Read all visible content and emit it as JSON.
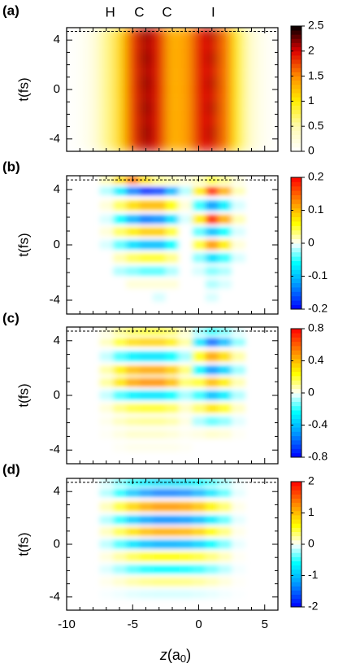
{
  "chart_data": [
    {
      "type": "heatmap",
      "panel_label": "(a)",
      "ylabel": "t(fs)",
      "atoms": [
        "H",
        "C",
        "C",
        "I"
      ],
      "xlim": [
        -10,
        6
      ],
      "xticks": [
        -10,
        -5,
        0,
        5
      ],
      "xminorticks": [
        -9,
        -8,
        -7,
        -6,
        -4,
        -3,
        -2,
        -1,
        1,
        2,
        3,
        4
      ],
      "show_xticklabels": false,
      "ylim": [
        -5,
        5
      ],
      "yticks": [
        -4,
        0,
        4
      ],
      "yminorticks": [
        -3,
        -2,
        -1,
        1,
        2,
        3
      ],
      "hline": 4.7,
      "clim": [
        0,
        2.5
      ],
      "cticks": [
        0,
        0.5,
        1,
        1.5,
        2,
        2.5
      ],
      "colorscale": [
        {
          "value": 0,
          "color": "#ffffff"
        },
        {
          "value": 0.5,
          "color": "#fffbb0"
        },
        {
          "value": 1,
          "color": "#ffee00"
        },
        {
          "value": 1.5,
          "color": "#ff8c00"
        },
        {
          "value": 2,
          "color": "#dd0000"
        },
        {
          "value": 2.5,
          "color": "#000000"
        }
      ],
      "x": [
        -9,
        -8,
        -7,
        -6,
        -5,
        -4,
        -3,
        -2,
        -1,
        0,
        1,
        2,
        3,
        4,
        5
      ],
      "y": [
        4.5,
        3.5,
        2.5,
        1.5,
        0.5,
        -0.5,
        -1.5,
        -2.5,
        -3.5,
        -4.5
      ],
      "values": [
        [
          0.05,
          0.2,
          0.6,
          1.1,
          1.8,
          2.2,
          1.9,
          1.3,
          1.4,
          1.9,
          2.1,
          1.6,
          0.9,
          0.3,
          0.08
        ],
        [
          0.05,
          0.2,
          0.6,
          1.1,
          1.8,
          2.1,
          1.9,
          1.3,
          1.4,
          1.9,
          2.0,
          1.6,
          0.9,
          0.3,
          0.08
        ],
        [
          0.05,
          0.2,
          0.6,
          1.1,
          1.8,
          2.2,
          1.9,
          1.3,
          1.4,
          1.9,
          2.1,
          1.6,
          0.9,
          0.3,
          0.08
        ],
        [
          0.05,
          0.2,
          0.6,
          1.1,
          1.8,
          2.1,
          1.9,
          1.3,
          1.4,
          1.9,
          2.0,
          1.6,
          0.9,
          0.3,
          0.08
        ],
        [
          0.05,
          0.2,
          0.6,
          1.1,
          1.8,
          2.2,
          1.9,
          1.3,
          1.4,
          1.9,
          2.1,
          1.6,
          0.9,
          0.3,
          0.08
        ],
        [
          0.05,
          0.2,
          0.6,
          1.1,
          1.8,
          2.1,
          1.9,
          1.3,
          1.4,
          1.9,
          2.0,
          1.6,
          0.9,
          0.3,
          0.08
        ],
        [
          0.05,
          0.2,
          0.6,
          1.1,
          1.8,
          2.2,
          1.9,
          1.3,
          1.4,
          1.9,
          2.1,
          1.6,
          0.9,
          0.3,
          0.08
        ],
        [
          0.05,
          0.2,
          0.6,
          1.1,
          1.8,
          2.1,
          1.9,
          1.3,
          1.4,
          1.9,
          2.0,
          1.6,
          0.9,
          0.3,
          0.08
        ],
        [
          0.05,
          0.2,
          0.6,
          1.1,
          1.8,
          2.2,
          1.9,
          1.3,
          1.4,
          1.9,
          2.1,
          1.6,
          0.9,
          0.3,
          0.08
        ],
        [
          0.05,
          0.2,
          0.6,
          1.1,
          1.8,
          2.1,
          1.9,
          1.3,
          1.4,
          1.9,
          2.0,
          1.6,
          0.9,
          0.3,
          0.08
        ]
      ]
    },
    {
      "type": "heatmap",
      "panel_label": "(b)",
      "ylabel": "t(fs)",
      "xlim": [
        -10,
        6
      ],
      "xticks": [
        -10,
        -5,
        0,
        5
      ],
      "xminorticks": [
        -9,
        -8,
        -7,
        -6,
        -4,
        -3,
        -2,
        -1,
        1,
        2,
        3,
        4
      ],
      "show_xticklabels": false,
      "ylim": [
        -5,
        5
      ],
      "yticks": [
        -4,
        0,
        4
      ],
      "yminorticks": [
        -3,
        -2,
        -1,
        1,
        2,
        3
      ],
      "hline": 4.7,
      "clim": [
        -0.2,
        0.2
      ],
      "cticks": [
        -0.2,
        -0.1,
        0,
        0.1,
        0.2
      ],
      "colorscale": [
        {
          "value": -0.2,
          "color": "#0000ff"
        },
        {
          "value": -0.12,
          "color": "#00a0ff"
        },
        {
          "value": -0.06,
          "color": "#00ffff"
        },
        {
          "value": 0,
          "color": "#ffffff"
        },
        {
          "value": 0.06,
          "color": "#ffff00"
        },
        {
          "value": 0.12,
          "color": "#ff9900"
        },
        {
          "value": 0.2,
          "color": "#ff0000"
        }
      ],
      "x": [
        -7,
        -6,
        -5,
        -4,
        -3,
        -2,
        -1,
        0,
        1,
        2,
        3
      ],
      "y": [
        4.7,
        3.9,
        2.85,
        1.85,
        0.95,
        0,
        -0.95,
        -1.9,
        -2.85,
        -3.8
      ],
      "values": [
        [
          0.02,
          0.08,
          0.14,
          0.08,
          0.03,
          0.02,
          0.01,
          0.02,
          0.05,
          0.03,
          0.01
        ],
        [
          -0.02,
          -0.07,
          -0.14,
          -0.18,
          -0.17,
          -0.11,
          -0.02,
          0.07,
          0.18,
          0.11,
          0.02
        ],
        [
          0.01,
          0.04,
          0.08,
          0.1,
          0.1,
          0.06,
          0.01,
          -0.05,
          -0.12,
          -0.07,
          -0.01
        ],
        [
          -0.01,
          -0.06,
          -0.11,
          -0.14,
          -0.13,
          -0.08,
          -0.01,
          0.07,
          0.18,
          0.11,
          0.02
        ],
        [
          0.01,
          0.04,
          0.07,
          0.09,
          0.09,
          0.05,
          0,
          -0.04,
          -0.1,
          -0.06,
          -0.01
        ],
        [
          -0.01,
          -0.04,
          -0.08,
          -0.1,
          -0.1,
          -0.06,
          0,
          0.05,
          0.12,
          0.07,
          0.01
        ],
        [
          0,
          0.02,
          0.04,
          0.05,
          0.05,
          0.03,
          0,
          -0.03,
          -0.08,
          -0.05,
          -0.01
        ],
        [
          0,
          -0.02,
          -0.03,
          -0.04,
          -0.04,
          -0.02,
          0,
          -0.01,
          -0.03,
          -0.02,
          0
        ],
        [
          0,
          0,
          0.01,
          0.01,
          0.01,
          0.01,
          0,
          0,
          -0.02,
          -0.01,
          0
        ],
        [
          0,
          0,
          0,
          0,
          -0.01,
          0,
          0,
          0,
          -0.01,
          0,
          0
        ]
      ]
    },
    {
      "type": "heatmap",
      "panel_label": "(c)",
      "ylabel": "t(fs)",
      "xlim": [
        -10,
        6
      ],
      "xticks": [
        -10,
        -5,
        0,
        5
      ],
      "xminorticks": [
        -9,
        -8,
        -7,
        -6,
        -4,
        -3,
        -2,
        -1,
        1,
        2,
        3,
        4
      ],
      "show_xticklabels": false,
      "ylim": [
        -5,
        5
      ],
      "yticks": [
        -4,
        0,
        4
      ],
      "yminorticks": [
        -3,
        -2,
        -1,
        1,
        2,
        3
      ],
      "hline": 4.7,
      "clim": [
        -0.8,
        0.8
      ],
      "cticks": [
        -0.8,
        -0.4,
        0,
        0.4,
        0.8
      ],
      "colorscale": [
        {
          "value": -0.8,
          "color": "#0000ff"
        },
        {
          "value": -0.48,
          "color": "#00a0ff"
        },
        {
          "value": -0.24,
          "color": "#00ffff"
        },
        {
          "value": 0,
          "color": "#ffffff"
        },
        {
          "value": 0.24,
          "color": "#ffff00"
        },
        {
          "value": 0.48,
          "color": "#ff9900"
        },
        {
          "value": 0.8,
          "color": "#ff0000"
        }
      ],
      "x": [
        -7,
        -6,
        -5,
        -4,
        -3,
        -2,
        -1,
        0,
        1,
        2,
        3
      ],
      "y": [
        4.7,
        3.9,
        2.85,
        1.85,
        0.95,
        0,
        -0.95,
        -1.9,
        -2.85,
        -3.8
      ],
      "values": [
        [
          0.04,
          0.12,
          0.18,
          0.2,
          0.2,
          0.16,
          0.06,
          -0.1,
          -0.2,
          -0.14,
          -0.04
        ],
        [
          0.07,
          0.21,
          0.32,
          0.35,
          0.35,
          0.28,
          0.1,
          -0.3,
          -0.6,
          -0.42,
          -0.12
        ],
        [
          -0.06,
          -0.18,
          -0.27,
          -0.3,
          -0.3,
          -0.24,
          -0.09,
          0.23,
          0.45,
          0.32,
          0.09
        ],
        [
          0.09,
          0.27,
          0.4,
          0.45,
          0.45,
          0.36,
          0.14,
          -0.25,
          -0.5,
          -0.35,
          -0.1
        ],
        [
          0.1,
          0.3,
          0.45,
          0.5,
          0.5,
          0.4,
          0.15,
          0.2,
          0.4,
          0.28,
          0.08
        ],
        [
          -0.06,
          -0.18,
          -0.27,
          -0.3,
          -0.3,
          -0.24,
          -0.09,
          -0.2,
          -0.4,
          -0.28,
          -0.08
        ],
        [
          0.04,
          0.12,
          0.18,
          0.2,
          0.2,
          0.16,
          0.06,
          0.15,
          0.3,
          0.21,
          0.06
        ],
        [
          0.02,
          0.06,
          0.09,
          0.1,
          0.1,
          0.08,
          0.03,
          -0.08,
          -0.15,
          -0.11,
          -0.03
        ],
        [
          0.01,
          0.03,
          0.05,
          0.05,
          0.05,
          0.04,
          0.02,
          0.03,
          0.05,
          0.04,
          0.01
        ],
        [
          0,
          0.01,
          0.02,
          0.02,
          0.02,
          0.02,
          0.01,
          0,
          0,
          0,
          0
        ]
      ]
    },
    {
      "type": "heatmap",
      "panel_label": "(d)",
      "ylabel": "t(fs)",
      "xlabel": {
        "var": "z",
        "open": "(a",
        "sub": "0",
        "close": ")"
      },
      "xlim": [
        -10,
        6
      ],
      "xticks": [
        -10,
        -5,
        0,
        5
      ],
      "xminorticks": [
        -9,
        -8,
        -7,
        -6,
        -4,
        -3,
        -2,
        -1,
        1,
        2,
        3,
        4
      ],
      "show_xticklabels": true,
      "ylim": [
        -5,
        5
      ],
      "yticks": [
        -4,
        0,
        4
      ],
      "yminorticks": [
        -3,
        -2,
        -1,
        1,
        2,
        3
      ],
      "hline": 4.7,
      "clim": [
        -2,
        2
      ],
      "cticks": [
        -2,
        -1,
        0,
        1,
        2
      ],
      "colorscale": [
        {
          "value": -2,
          "color": "#0000ff"
        },
        {
          "value": -1.2,
          "color": "#00a0ff"
        },
        {
          "value": -0.6,
          "color": "#00ffff"
        },
        {
          "value": 0,
          "color": "#ffffff"
        },
        {
          "value": 0.6,
          "color": "#ffff00"
        },
        {
          "value": 1.2,
          "color": "#ff9900"
        },
        {
          "value": 2,
          "color": "#ff0000"
        }
      ],
      "x": [
        -7,
        -6,
        -5,
        -4,
        -3,
        -2,
        -1,
        0,
        1,
        2,
        3
      ],
      "y": [
        4.7,
        3.9,
        2.85,
        1.85,
        0.95,
        0,
        -0.95,
        -1.9,
        -2.85,
        -3.8
      ],
      "values": [
        [
          -0.12,
          -0.32,
          -0.56,
          -0.72,
          -0.8,
          -0.8,
          -0.76,
          -0.64,
          -0.44,
          -0.24,
          -0.04
        ],
        [
          -0.21,
          -0.56,
          -0.98,
          -1.26,
          -1.4,
          -1.4,
          -1.33,
          -1.12,
          -0.77,
          -0.42,
          -0.07
        ],
        [
          0.18,
          0.48,
          0.84,
          1.08,
          1.2,
          1.2,
          1.14,
          0.96,
          0.66,
          0.36,
          0.06
        ],
        [
          -0.2,
          -0.52,
          -0.91,
          -1.17,
          -1.3,
          -1.3,
          -1.24,
          -1.04,
          -0.72,
          -0.39,
          -0.07
        ],
        [
          0.17,
          0.44,
          0.77,
          0.99,
          1.1,
          1.1,
          1.05,
          0.88,
          0.61,
          0.33,
          0.06
        ],
        [
          -0.17,
          -0.44,
          -0.77,
          -0.99,
          -1.1,
          -1.1,
          -1.05,
          -0.88,
          -0.61,
          -0.33,
          -0.06
        ],
        [
          0.09,
          0.24,
          0.42,
          0.54,
          0.6,
          0.6,
          0.57,
          0.48,
          0.33,
          0.18,
          0.03
        ],
        [
          -0.09,
          -0.24,
          -0.42,
          -0.54,
          -0.6,
          -0.6,
          -0.57,
          -0.48,
          -0.33,
          -0.18,
          -0.03
        ],
        [
          0.05,
          0.12,
          0.21,
          0.27,
          0.3,
          0.3,
          0.29,
          0.24,
          0.17,
          0.09,
          0.02
        ],
        [
          -0.02,
          -0.04,
          -0.07,
          -0.09,
          -0.1,
          -0.1,
          -0.1,
          -0.08,
          -0.06,
          -0.03,
          -0.01
        ]
      ]
    }
  ]
}
